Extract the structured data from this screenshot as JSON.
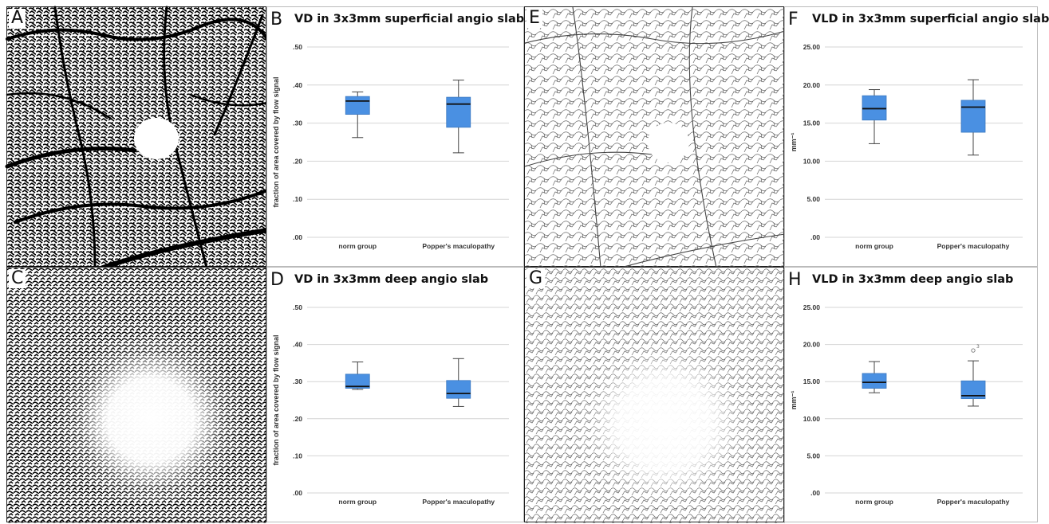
{
  "chart_data": [
    {
      "panel": "B",
      "type": "box",
      "title": "VD in 3x3mm superficial angio slab",
      "ylabel": "fraction of area covered by flow signal",
      "ylim": [
        0,
        0.5
      ],
      "ytick_values": [
        0,
        0.1,
        0.2,
        0.3,
        0.4,
        0.5
      ],
      "ytick_labels": [
        ".00",
        ".10",
        ".20",
        ".30",
        ".40",
        ".50"
      ],
      "categories": [
        "norm group",
        "Popper's maculopathy"
      ],
      "boxes": [
        {
          "min": 0.262,
          "q1": 0.323,
          "median": 0.358,
          "q3": 0.37,
          "max": 0.382,
          "outliers": []
        },
        {
          "min": 0.222,
          "q1": 0.289,
          "median": 0.35,
          "q3": 0.368,
          "max": 0.413,
          "outliers": []
        }
      ]
    },
    {
      "panel": "F",
      "type": "box",
      "title": "VLD in 3x3mm superficial angio slab",
      "ylabel": "mm⁻¹",
      "ylim": [
        0,
        25
      ],
      "ytick_values": [
        0,
        5,
        10,
        15,
        20,
        25
      ],
      "ytick_labels": [
        ".00",
        "5.00",
        "10.00",
        "15.00",
        "20.00",
        "25.00"
      ],
      "categories": [
        "norm group",
        "Popper's maculopathy"
      ],
      "boxes": [
        {
          "min": 12.3,
          "q1": 15.4,
          "median": 16.9,
          "q3": 18.6,
          "max": 19.4,
          "outliers": []
        },
        {
          "min": 10.8,
          "q1": 13.8,
          "median": 17.1,
          "q3": 18.0,
          "max": 20.7,
          "outliers": []
        }
      ]
    },
    {
      "panel": "D",
      "type": "box",
      "title": "VD in 3x3mm deep angio slab",
      "ylabel": "fraction of area covered by flow signal",
      "ylim": [
        0,
        0.5
      ],
      "ytick_values": [
        0,
        0.1,
        0.2,
        0.3,
        0.4,
        0.5
      ],
      "ytick_labels": [
        ".00",
        ".10",
        ".20",
        ".30",
        ".40",
        ".50"
      ],
      "categories": [
        "norm group",
        "Popper's maculopathy"
      ],
      "boxes": [
        {
          "min": 0.279,
          "q1": 0.282,
          "median": 0.287,
          "q3": 0.32,
          "max": 0.353,
          "outliers": []
        },
        {
          "min": 0.233,
          "q1": 0.255,
          "median": 0.268,
          "q3": 0.303,
          "max": 0.362,
          "outliers": []
        }
      ]
    },
    {
      "panel": "H",
      "type": "box",
      "title": "VLD in 3x3mm deep angio slab",
      "ylabel": "mm⁻¹",
      "ylim": [
        0,
        25
      ],
      "ytick_values": [
        0,
        5,
        10,
        15,
        20,
        25
      ],
      "ytick_labels": [
        ".00",
        "5.00",
        "10.00",
        "15.00",
        "20.00",
        "25.00"
      ],
      "categories": [
        "norm group",
        "Popper's maculopathy"
      ],
      "boxes": [
        {
          "min": 13.5,
          "q1": 14.1,
          "median": 14.9,
          "q3": 16.1,
          "max": 17.7,
          "outliers": []
        },
        {
          "min": 11.7,
          "q1": 12.7,
          "median": 13.1,
          "q3": 15.1,
          "max": 17.8,
          "outliers": [
            {
              "value": 19.2,
              "label": "3"
            }
          ]
        }
      ]
    }
  ],
  "image_panels": [
    {
      "letter": "A"
    },
    {
      "letter": "C"
    },
    {
      "letter": "E"
    },
    {
      "letter": "G"
    }
  ],
  "colors": {
    "box_fill": "#4A90E2",
    "grid": "#d4d4d4",
    "whisker": "#444444"
  }
}
